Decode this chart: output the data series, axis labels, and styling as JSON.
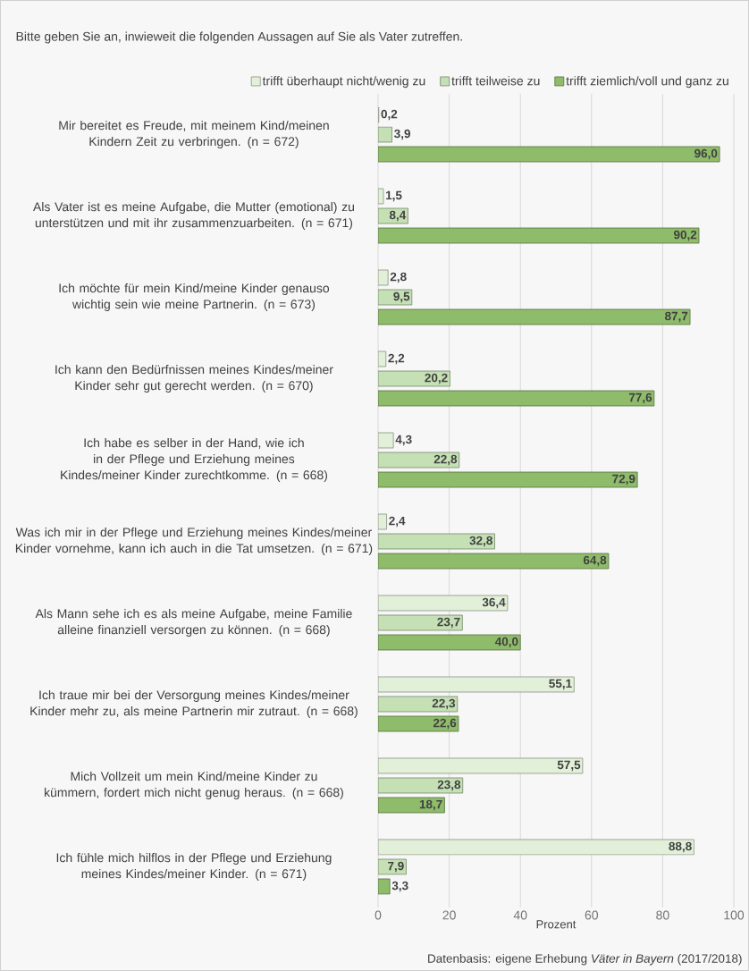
{
  "chart_data": {
    "type": "bar",
    "orientation": "horizontal",
    "title": "Bitte geben Sie an, inwieweit die folgenden Aussagen auf Sie als Vater zutreffen.",
    "xlabel": "Prozent",
    "annotations": [
      "Datenbasis: eigene Erhebung *Väter in Bayern* (2017/2018)"
    ],
    "categories": [
      "Mir bereitet es Freude, mit meinem Kind/meinen Kindern Zeit zu verbringen. (n = 672)",
      "Als Vater ist es meine Aufgabe, die Mutter (emotional) zu unterstützen und mit ihr zusammenzuarbeiten. (n = 671)",
      "Ich möchte für mein Kind/meine Kinder genauso wichtig sein wie meine Partnerin. (n = 673)",
      "Ich kann den Bedürfnissen meines Kindes/meiner Kinder sehr gut gerecht werden. (n = 670)",
      "Ich habe es selber in der Hand, wie ich in der Pflege und Erziehung meines Kindes/meiner Kinder zurechtkomme. (n = 668)",
      "Was ich mir in der Pflege und Erziehung meines Kindes/meiner Kinder vornehme, kann ich auch in die Tat umsetzen. (n = 671)",
      "Als Mann sehe ich es als meine Aufgabe, meine Familie alleine finanziell versorgen zu können. (n = 668)",
      "Ich traue mir bei der Versorgung meines Kindes/meiner Kinder mehr zu, als meine Partnerin mir zutraut. (n = 668)",
      "Mich Vollzeit um mein Kind/meine Kinder zu kümmern, fordert mich nicht genug heraus. (n = 668)",
      "Ich fühle mich hilflos in der Pflege und Erziehung meines Kindes/meiner Kinder. (n = 671)"
    ],
    "series": [
      {
        "name": "trifft überhaupt nicht/wenig zu",
        "color": "#e2f0d9",
        "values": [
          0.2,
          1.5,
          2.8,
          2.2,
          4.3,
          2.4,
          36.4,
          55.1,
          57.5,
          88.8
        ],
        "value_labels": [
          "0,2",
          "1,5",
          "2,8",
          "2,2",
          "4,3",
          "2,4",
          "36,4",
          "55,1",
          "57,5",
          "88,8"
        ]
      },
      {
        "name": "trifft teilweise zu",
        "color": "#c5e0b4",
        "values": [
          3.9,
          8.4,
          9.5,
          20.2,
          22.8,
          32.8,
          23.7,
          22.3,
          23.8,
          7.9
        ],
        "value_labels": [
          "3,9",
          "8,4",
          "9,5",
          "20,2",
          "22,8",
          "32,8",
          "23,7",
          "22,3",
          "23,8",
          "7,9"
        ]
      },
      {
        "name": "trifft ziemlich/voll und ganz zu",
        "color": "#8fbc6b",
        "values": [
          96.0,
          90.2,
          87.7,
          77.6,
          72.9,
          64.8,
          40.0,
          22.6,
          18.7,
          3.3
        ],
        "value_labels": [
          "96,0",
          "90,2",
          "87,7",
          "77,6",
          "72,9",
          "64,8",
          "40,0",
          "22,6",
          "18,7",
          "3,3"
        ]
      }
    ],
    "xlim": [
      0,
      100
    ],
    "xticks": [
      0,
      20,
      40,
      60,
      80,
      100
    ],
    "grid": "x",
    "legend": "top"
  }
}
